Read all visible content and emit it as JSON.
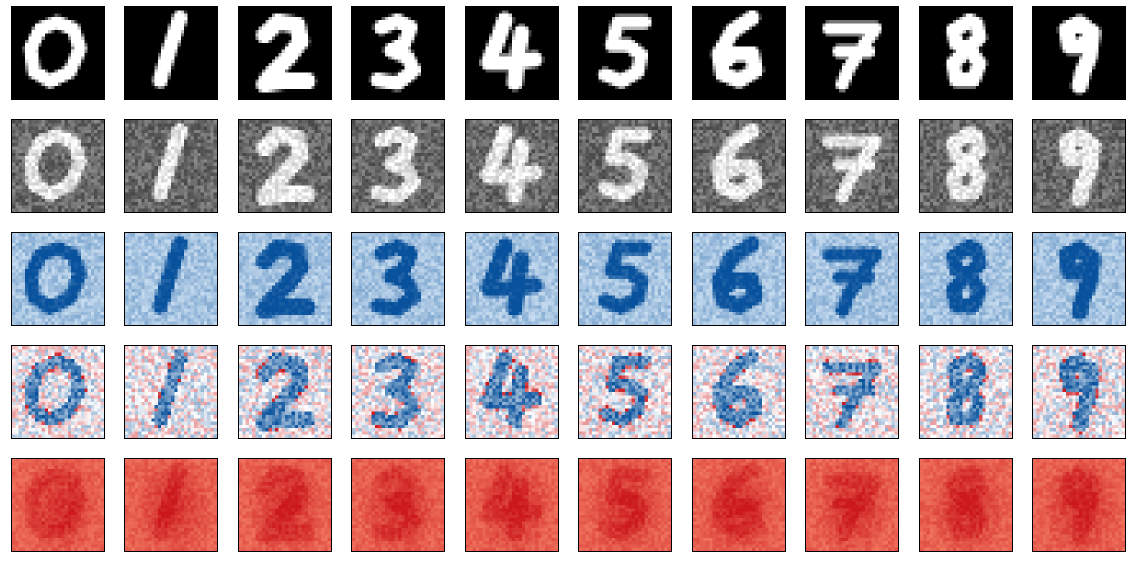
{
  "figure": {
    "digits": [
      0,
      1,
      2,
      3,
      4,
      5,
      6,
      7,
      8,
      9
    ],
    "rows": [
      {
        "id": "original",
        "colormap": "gray"
      },
      {
        "id": "noisy-gray",
        "colormap": "gray"
      },
      {
        "id": "blues-map",
        "colormap": "Blues"
      },
      {
        "id": "diverging-map",
        "colormap": "RdBu"
      },
      {
        "id": "reds-map",
        "colormap": "Reds"
      }
    ],
    "colors": {
      "blue": "#08519c",
      "light_blue": "#c6dbef",
      "red": "#cb181d",
      "light_red": "#fc9272",
      "white": "#ffffff",
      "black": "#000000"
    }
  }
}
